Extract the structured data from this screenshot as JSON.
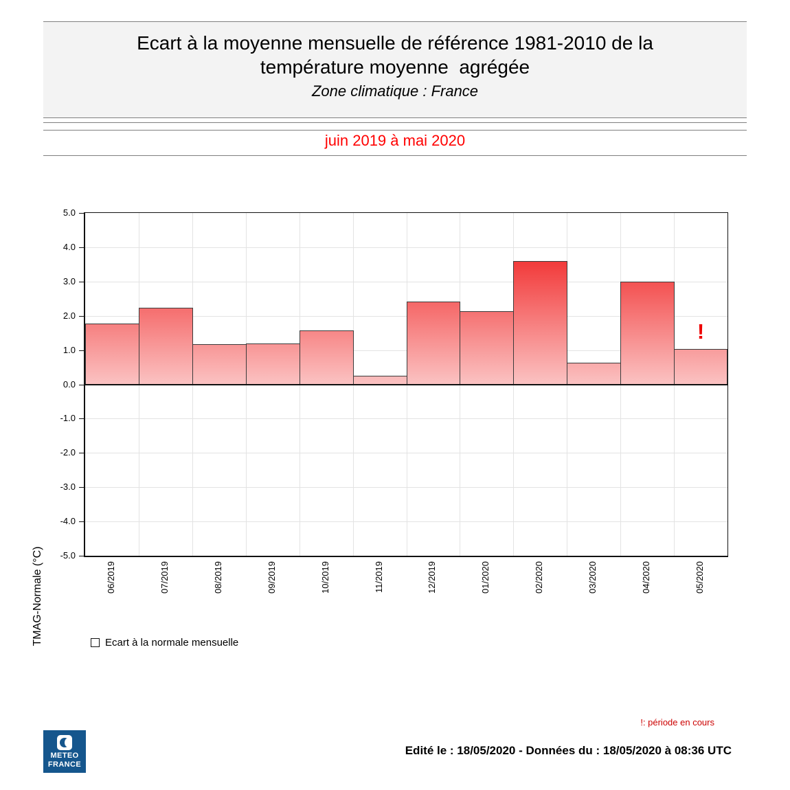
{
  "header": {
    "title": "Ecart à la moyenne mensuelle de référence 1981-2010 de la température moyenne  agrégée",
    "subtitle": "Zone climatique : France",
    "period": "juin 2019 à mai 2020"
  },
  "chart_data": {
    "type": "bar",
    "title": "Ecart à la moyenne mensuelle de référence 1981-2010 de la température moyenne agrégée",
    "subtitle": "Zone climatique : France",
    "categories": [
      "06/2019",
      "07/2019",
      "08/2019",
      "09/2019",
      "10/2019",
      "11/2019",
      "12/2019",
      "01/2020",
      "02/2020",
      "03/2020",
      "04/2020",
      "05/2020"
    ],
    "values": [
      1.78,
      2.24,
      1.19,
      1.21,
      1.58,
      0.27,
      2.43,
      2.15,
      3.6,
      0.65,
      3.0,
      1.04
    ],
    "xlabel": "",
    "ylabel": "TMAG-Normale (°C)",
    "ylim": [
      -5.0,
      5.0
    ],
    "ytick_labels": [
      "5.0",
      "4.0",
      "3.0",
      "2.0",
      "1.0",
      "0.0",
      "-1.0",
      "-2.0",
      "-3.0",
      "-4.0",
      "-5.0"
    ],
    "grid": true,
    "legend": {
      "label": "Ecart à la normale mensuelle",
      "position": "bottom-left"
    },
    "annotation": {
      "text": "!",
      "category": "05/2020"
    },
    "colors": {
      "bar_gradient_top_at_max": "#ee0606",
      "bar_gradient_bottom": "#fbc3c3",
      "bar_border": "#3a3a3a",
      "annotation": "#ee0000"
    }
  },
  "footnote": {
    "text": "!: période en cours"
  },
  "footer": {
    "edited": "Edité le : 18/05/2020 - Données du : 18/05/2020 à 08:36 UTC"
  },
  "logo": {
    "line1": "METEO",
    "line2": "FRANCE"
  }
}
